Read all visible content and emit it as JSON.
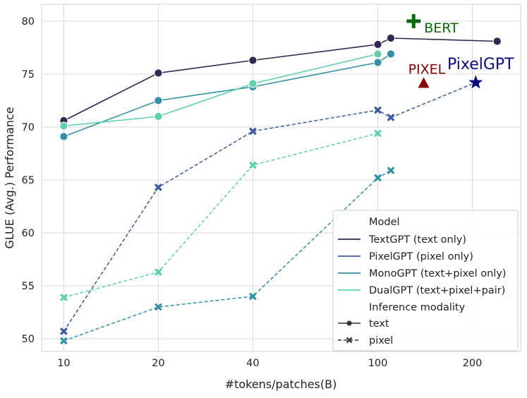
{
  "chart_data": {
    "type": "line",
    "xscale": "log",
    "xlabel": "#tokens/patches(B)",
    "ylabel": "GLUE (Avg.) Performance",
    "xticks": [
      10,
      20,
      40,
      100,
      200
    ],
    "yticks": [
      50,
      55,
      60,
      65,
      70,
      75,
      80
    ],
    "xlim": [
      8.5,
      285
    ],
    "ylim": [
      48.8,
      81.6
    ],
    "grid": true,
    "legend": {
      "placement": "lower-right",
      "model_title": "Model",
      "modality_title": "Inference modality",
      "modality_entries": [
        {
          "label": "text",
          "style": "solid",
          "marker": "circle"
        },
        {
          "label": "pixel",
          "style": "dashed",
          "marker": "x"
        }
      ]
    },
    "series": [
      {
        "name": "TextGPT (text only)",
        "color": "#35264f",
        "text": {
          "x": [
            10,
            20,
            40,
            100,
            110,
            240
          ],
          "y": [
            70.6,
            75.1,
            76.3,
            77.8,
            78.4,
            78.1
          ]
        },
        "pixel": null
      },
      {
        "name": "PixelGPT (pixel only)",
        "color": "#3b5a9e",
        "text": null,
        "pixel": {
          "x": [
            10,
            20,
            40,
            100,
            110
          ],
          "y": [
            50.7,
            64.3,
            69.6,
            71.6,
            70.9
          ]
        }
      },
      {
        "name": "MonoGPT (text+pixel only)",
        "color": "#3491a5",
        "text": {
          "x": [
            10,
            20,
            40,
            100,
            110
          ],
          "y": [
            69.1,
            72.5,
            73.8,
            76.1,
            76.9
          ]
        },
        "pixel": {
          "x": [
            10,
            20,
            40,
            100,
            110
          ],
          "y": [
            49.8,
            53.0,
            54.0,
            65.2,
            65.9
          ]
        }
      },
      {
        "name": "DualGPT (text+pixel+pair)",
        "color": "#5fcfaf",
        "text": {
          "x": [
            10,
            20,
            40,
            100
          ],
          "y": [
            70.1,
            71.0,
            74.1,
            76.9
          ]
        },
        "pixel": {
          "x": [
            10,
            20,
            40,
            100
          ],
          "y": [
            53.9,
            56.3,
            66.4,
            69.4
          ]
        }
      }
    ],
    "dashed_connector": {
      "color": "#3b5a9e",
      "from": {
        "x": 110,
        "y": 70.9
      },
      "to": {
        "x": 205,
        "y": 74.2
      }
    },
    "annotations": [
      {
        "label": "BERT",
        "x": 130,
        "y": 80.0,
        "marker": "plus",
        "color": "#0b6b0b"
      },
      {
        "label": "PIXEL",
        "x": 140,
        "y": 74.1,
        "marker": "triangle",
        "color": "#8b0000"
      },
      {
        "label": "PixelGPT",
        "x": 205,
        "y": 74.2,
        "marker": "star",
        "color": "#0a0a80"
      }
    ]
  }
}
